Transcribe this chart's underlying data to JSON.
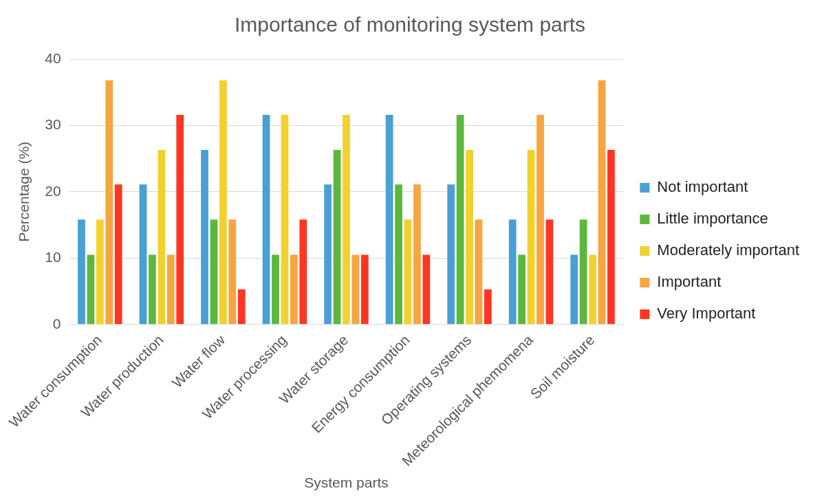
{
  "chart_data": {
    "type": "bar",
    "title": "Importance of monitoring system parts",
    "xlabel": "System parts",
    "ylabel": "Percentage (%)",
    "categories": [
      "Water consumption",
      "Water production",
      "Water flow",
      "Water processing",
      "Water storage",
      "Energy consumption",
      "Operating systems",
      "Meteorological phemomena",
      "Soil moisture"
    ],
    "series": [
      {
        "name": "Not important",
        "color": "#4a9fd4",
        "values": [
          15.8,
          21.1,
          26.3,
          31.6,
          21.1,
          31.6,
          21.1,
          15.8,
          10.5
        ]
      },
      {
        "name": "Little importance",
        "color": "#5cb83c",
        "values": [
          10.5,
          10.5,
          15.8,
          10.5,
          26.3,
          21.1,
          31.6,
          10.5,
          15.8
        ]
      },
      {
        "name": "Moderately important",
        "color": "#f2d12e",
        "values": [
          15.8,
          26.3,
          36.8,
          31.6,
          31.6,
          15.8,
          26.3,
          26.3,
          10.5
        ]
      },
      {
        "name": "Important",
        "color": "#f7a540",
        "values": [
          36.8,
          10.5,
          15.8,
          10.5,
          10.5,
          21.1,
          15.8,
          31.6,
          36.8
        ]
      },
      {
        "name": "Very Important",
        "color": "#ff3524",
        "values": [
          21.1,
          31.6,
          5.3,
          15.8,
          10.5,
          10.5,
          5.3,
          15.8,
          26.3
        ]
      }
    ],
    "ylim": [
      0,
      40
    ],
    "yticks": [
      0,
      10,
      20,
      30,
      40
    ],
    "grid": "y",
    "legend": "right"
  }
}
